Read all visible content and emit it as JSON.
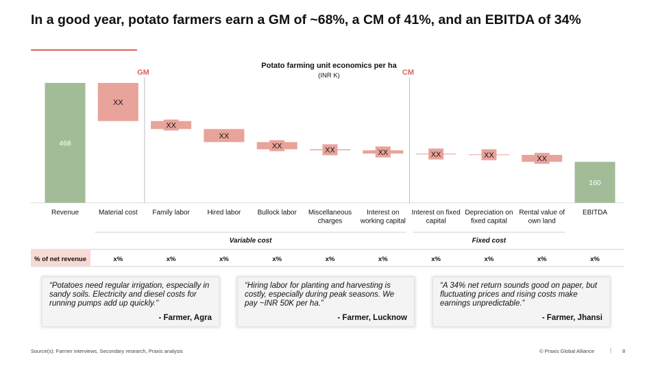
{
  "slide": {
    "title": "In a good year, potato farmers earn a GM of ~68%, a CM of 41%, and an EBITDA of 34%",
    "source": "Source(s): Farmer interviews, Secondary research, Praxis analysis",
    "copyright": "© Praxis Global Alliance",
    "separator": "|",
    "page_number": "8"
  },
  "colors": {
    "total_bar": "#a3bc98",
    "cost_bar": "#e8a39b",
    "accent": "#d9655b"
  },
  "chart_data": {
    "type": "waterfall",
    "title": "Potato farming unit economics per ha",
    "subtitle": "(INR K)",
    "ylim": [
      0,
      468
    ],
    "categories": [
      {
        "label": [
          "Revenue"
        ],
        "kind": "total",
        "value": 468,
        "label_text": "468",
        "start": 0,
        "end": 468
      },
      {
        "label": [
          "Material cost"
        ],
        "kind": "cost",
        "label_text": "XX",
        "start": 468,
        "end": 319
      },
      {
        "label": [
          "Family labor"
        ],
        "kind": "cost",
        "label_text": "XX",
        "start": 319,
        "end": 288
      },
      {
        "label": [
          "Hired labor"
        ],
        "kind": "cost",
        "label_text": "XX",
        "start": 288,
        "end": 237
      },
      {
        "label": [
          "Bullock labor"
        ],
        "kind": "cost",
        "label_text": "XX",
        "start": 237,
        "end": 209
      },
      {
        "label": [
          "Miscellaneous",
          "charges"
        ],
        "kind": "cost",
        "label_text": "XX",
        "start": 209,
        "end": 205
      },
      {
        "label": [
          "Interest on",
          "working capital"
        ],
        "kind": "cost",
        "label_text": "XX",
        "start": 205,
        "end": 192
      },
      {
        "label": [
          "Interest on fixed",
          "capital"
        ],
        "kind": "cost",
        "label_text": "XX",
        "start": 192,
        "end": 189
      },
      {
        "label": [
          "Depreciation on",
          "fixed capital"
        ],
        "kind": "cost",
        "label_text": "XX",
        "start": 189,
        "end": 187
      },
      {
        "label": [
          "Rental value of",
          "own land"
        ],
        "kind": "cost",
        "label_text": "XX",
        "start": 187,
        "end": 160
      },
      {
        "label": [
          "EBITDA"
        ],
        "kind": "total",
        "value": 160,
        "label_text": "160",
        "start": 0,
        "end": 160
      }
    ],
    "markers": [
      {
        "label": "GM",
        "after_index": 1
      },
      {
        "label": "CM",
        "after_index": 6
      }
    ],
    "groups": [
      {
        "label": "Variable cost",
        "from_index": 1,
        "to_index": 6
      },
      {
        "label": "Fixed cost",
        "from_index": 7,
        "to_index": 9
      }
    ],
    "row_label": "% of net revenue",
    "row_values": [
      "x%",
      "x%",
      "x%",
      "x%",
      "x%",
      "x%",
      "x%",
      "x%",
      "x%",
      "x%"
    ]
  },
  "quotes": [
    {
      "text": "“Potatoes need regular irrigation, especially in sandy soils. Electricity and diesel costs for running pumps add up quickly.\"",
      "author": "- Farmer, Agra"
    },
    {
      "text": "“Hiring labor for planting and harvesting is costly, especially during peak seasons. We pay ~INR 50K per ha.”",
      "author": "- Farmer, Lucknow"
    },
    {
      "text": "“A 34% net return sounds good on paper, but fluctuating prices and rising costs make earnings unpredictable.”",
      "author": "- Farmer, Jhansi"
    }
  ]
}
